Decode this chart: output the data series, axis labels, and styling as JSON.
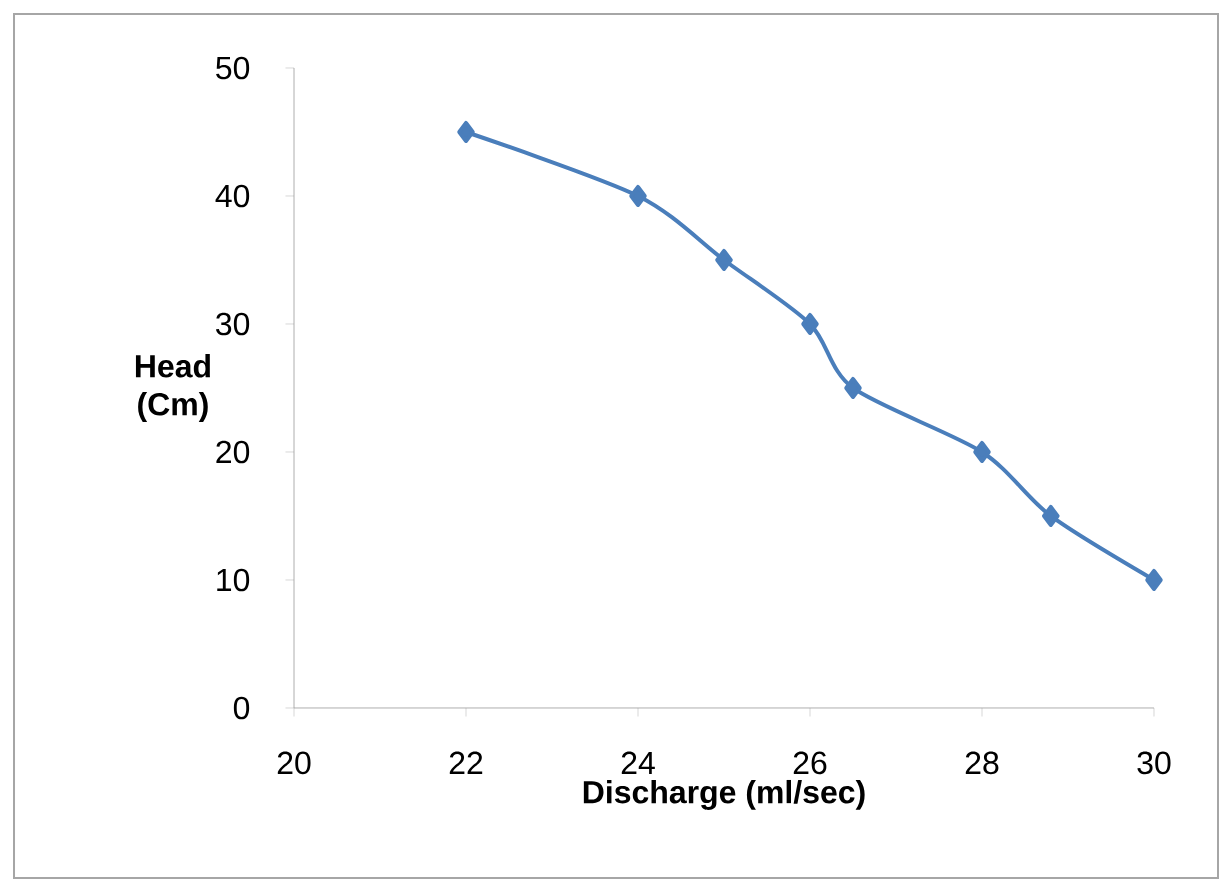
{
  "chart_data": {
    "type": "line",
    "xlabel": "Discharge (ml/sec)",
    "ylabel": "Head (Cm)",
    "x": [
      22,
      24,
      25,
      26,
      26.5,
      28,
      28.8,
      30
    ],
    "series": [
      {
        "color": "#4a7ebb",
        "values": [
          45,
          40,
          35,
          30,
          25,
          20,
          15,
          10
        ]
      }
    ],
    "xlim": [
      20,
      30
    ],
    "xticks": [
      20,
      22,
      24,
      26,
      28,
      30
    ],
    "ylim": [
      0,
      50
    ],
    "yticks": [
      0,
      10,
      20,
      30,
      40,
      50
    ],
    "marker": "diamond",
    "line_style": "solid"
  }
}
